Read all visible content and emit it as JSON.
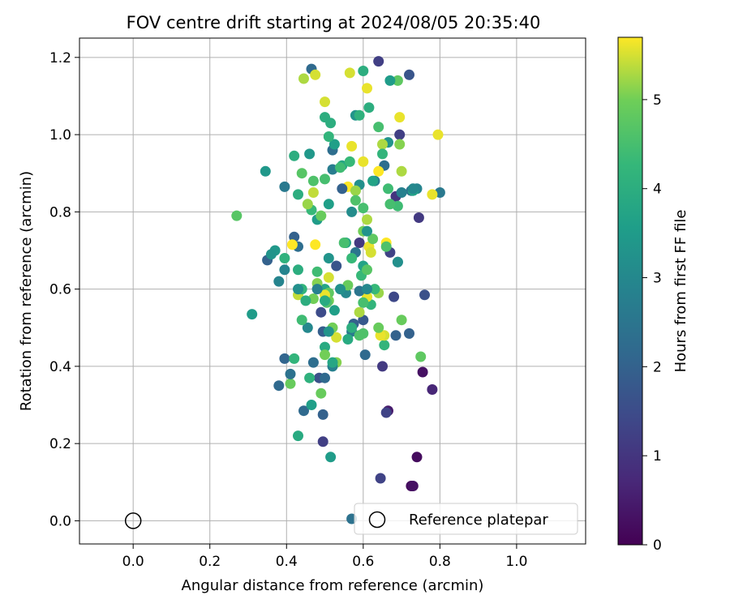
{
  "chart_data": {
    "type": "scatter",
    "title": "FOV centre drift starting at 2024/08/05 20:35:40",
    "xlabel": "Angular distance from reference (arcmin)",
    "ylabel": "Rotation from reference (arcmin)",
    "xlim": [
      -0.14,
      1.18
    ],
    "ylim": [
      -0.06,
      1.25
    ],
    "xticks": [
      0.0,
      0.2,
      0.4,
      0.6,
      0.8,
      1.0
    ],
    "yticks": [
      0.0,
      0.2,
      0.4,
      0.6,
      0.8,
      1.0,
      1.2
    ],
    "xtick_labels": [
      "0.0",
      "0.2",
      "0.4",
      "0.6",
      "0.8",
      "1.0"
    ],
    "ytick_labels": [
      "0.0",
      "0.2",
      "0.4",
      "0.6",
      "0.8",
      "1.0",
      "1.2"
    ],
    "grid": true,
    "legend": {
      "placement": "lower-right",
      "entries": [
        "Reference platepar"
      ]
    },
    "colorbar": {
      "label": "Hours from first FF file",
      "colormap": "viridis",
      "range": [
        0,
        5.7
      ],
      "ticks": [
        0,
        1,
        2,
        3,
        4,
        5
      ],
      "tick_labels": [
        "0",
        "1",
        "2",
        "3",
        "4",
        "5"
      ]
    },
    "reference_point": {
      "x": 0.0,
      "y": 0.0,
      "label": "Reference platepar"
    },
    "series": [
      {
        "points": [
          [
            0.725,
            0.09,
            0.2
          ],
          [
            0.73,
            0.09,
            0.3
          ],
          [
            0.74,
            0.165,
            0.2
          ],
          [
            0.755,
            0.385,
            0.3
          ],
          [
            0.78,
            0.34,
            0.7
          ],
          [
            0.665,
            0.285,
            0.5
          ],
          [
            0.66,
            0.28,
            1.3
          ],
          [
            0.645,
            0.11,
            1.3
          ],
          [
            0.495,
            0.205,
            1.2
          ],
          [
            0.65,
            0.4,
            1.1
          ],
          [
            0.68,
            0.58,
            1.4
          ],
          [
            0.745,
            0.785,
            1.1
          ],
          [
            0.64,
            1.19,
            1.2
          ],
          [
            0.72,
            1.155,
            1.7
          ],
          [
            0.695,
            1.0,
            1.2
          ],
          [
            0.685,
            0.84,
            1.0
          ],
          [
            0.59,
            0.72,
            1.1
          ],
          [
            0.67,
            0.695,
            1.3
          ],
          [
            0.49,
            0.54,
            1.5
          ],
          [
            0.485,
            0.37,
            1.6
          ],
          [
            0.53,
            0.66,
            1.7
          ],
          [
            0.495,
            0.49,
            1.9
          ],
          [
            0.6,
            0.52,
            1.8
          ],
          [
            0.605,
            0.43,
            2.2
          ],
          [
            0.72,
            0.485,
            2.0
          ],
          [
            0.76,
            0.585,
            1.6
          ],
          [
            0.685,
            0.48,
            2.0
          ],
          [
            0.575,
            0.51,
            2.0
          ],
          [
            0.495,
            0.275,
            2.0
          ],
          [
            0.445,
            0.285,
            2.2
          ],
          [
            0.42,
            0.735,
            2.0
          ],
          [
            0.43,
            0.71,
            2.3
          ],
          [
            0.35,
            0.675,
            2.0
          ],
          [
            0.38,
            0.35,
            2.2
          ],
          [
            0.395,
            0.42,
            2.1
          ],
          [
            0.47,
            0.41,
            2.3
          ],
          [
            0.52,
            0.96,
            2.3
          ],
          [
            0.465,
            1.17,
            2.2
          ],
          [
            0.57,
            0.005,
            2.4
          ],
          [
            0.655,
            0.92,
            2.3
          ],
          [
            0.8,
            0.85,
            2.6
          ],
          [
            0.725,
            0.855,
            2.4
          ],
          [
            0.69,
            0.67,
            2.6
          ],
          [
            0.57,
            0.49,
            2.6
          ],
          [
            0.58,
            0.695,
            2.5
          ],
          [
            0.63,
            0.88,
            2.8
          ],
          [
            0.74,
            0.86,
            2.9
          ],
          [
            0.7,
            0.85,
            2.8
          ],
          [
            0.52,
            0.91,
            2.7
          ],
          [
            0.395,
            0.865,
            2.6
          ],
          [
            0.38,
            0.62,
            2.9
          ],
          [
            0.395,
            0.65,
            2.9
          ],
          [
            0.455,
            0.5,
            3.0
          ],
          [
            0.555,
            0.59,
            3.0
          ],
          [
            0.57,
            0.8,
            3.1
          ],
          [
            0.59,
            0.87,
            3.2
          ],
          [
            0.665,
            0.98,
            3.3
          ],
          [
            0.58,
            1.05,
            3.3
          ],
          [
            0.345,
            0.905,
            3.4
          ],
          [
            0.37,
            0.7,
            3.4
          ],
          [
            0.31,
            0.535,
            3.5
          ],
          [
            0.46,
            0.95,
            3.4
          ],
          [
            0.48,
            0.78,
            3.5
          ],
          [
            0.51,
            0.82,
            3.6
          ],
          [
            0.465,
            0.3,
            3.6
          ],
          [
            0.515,
            0.165,
            3.5
          ],
          [
            0.525,
            0.975,
            3.6
          ],
          [
            0.73,
            0.855,
            3.7
          ],
          [
            0.625,
            0.88,
            3.7
          ],
          [
            0.6,
            0.66,
            3.7
          ],
          [
            0.555,
            0.72,
            3.8
          ],
          [
            0.5,
            0.6,
            3.8
          ],
          [
            0.545,
            0.92,
            3.8
          ],
          [
            0.5,
            0.45,
            3.9
          ],
          [
            0.56,
            0.47,
            3.9
          ],
          [
            0.6,
            1.165,
            4.0
          ],
          [
            0.5,
            1.045,
            4.0
          ],
          [
            0.515,
            1.03,
            4.0
          ],
          [
            0.59,
            1.05,
            4.1
          ],
          [
            0.615,
            1.07,
            4.0
          ],
          [
            0.42,
            0.945,
            4.0
          ],
          [
            0.43,
            0.845,
            4.0
          ],
          [
            0.395,
            0.68,
            4.1
          ],
          [
            0.43,
            0.22,
            3.9
          ],
          [
            0.46,
            0.37,
            4.1
          ],
          [
            0.655,
            0.455,
            4.2
          ],
          [
            0.62,
            0.56,
            4.2
          ],
          [
            0.595,
            0.635,
            4.3
          ],
          [
            0.565,
            0.93,
            4.3
          ],
          [
            0.465,
            0.805,
            4.3
          ],
          [
            0.42,
            0.42,
            4.2
          ],
          [
            0.69,
            0.815,
            4.4
          ],
          [
            0.665,
            0.86,
            4.4
          ],
          [
            0.44,
            0.52,
            4.4
          ],
          [
            0.64,
            1.02,
            4.5
          ],
          [
            0.6,
            0.81,
            4.5
          ],
          [
            0.5,
            0.885,
            4.5
          ],
          [
            0.27,
            0.79,
            4.7
          ],
          [
            0.44,
            0.9,
            4.7
          ],
          [
            0.75,
            0.425,
            4.8
          ],
          [
            0.69,
            1.14,
            4.8
          ],
          [
            0.49,
            0.33,
            4.9
          ],
          [
            0.41,
            0.355,
            4.9
          ],
          [
            0.51,
            0.59,
            4.8
          ],
          [
            0.5,
            0.43,
            5.0
          ],
          [
            0.53,
            0.41,
            5.1
          ],
          [
            0.65,
            0.975,
            5.3
          ],
          [
            0.7,
            0.905,
            5.3
          ],
          [
            0.64,
            0.59,
            5.2
          ],
          [
            0.51,
            0.57,
            5.0
          ],
          [
            0.59,
            0.54,
            5.3
          ],
          [
            0.655,
            0.48,
            5.5
          ],
          [
            0.61,
            0.78,
            5.3
          ],
          [
            0.475,
            1.155,
            5.5
          ],
          [
            0.565,
            1.16,
            5.5
          ],
          [
            0.61,
            1.12,
            5.6
          ],
          [
            0.5,
            1.085,
            5.5
          ],
          [
            0.695,
            1.045,
            5.6
          ],
          [
            0.57,
            0.97,
            5.6
          ],
          [
            0.6,
            0.93,
            5.6
          ],
          [
            0.795,
            1.0,
            5.6
          ],
          [
            0.78,
            0.845,
            5.6
          ],
          [
            0.64,
            0.905,
            5.7
          ],
          [
            0.56,
            0.865,
            5.7
          ],
          [
            0.415,
            0.715,
            5.7
          ],
          [
            0.475,
            0.715,
            5.7
          ],
          [
            0.615,
            0.71,
            5.6
          ],
          [
            0.66,
            0.72,
            5.7
          ],
          [
            0.62,
            0.695,
            5.5
          ],
          [
            0.51,
            0.63,
            5.5
          ],
          [
            0.43,
            0.585,
            5.4
          ],
          [
            0.5,
            0.585,
            5.6
          ],
          [
            0.53,
            0.475,
            5.5
          ],
          [
            0.61,
            0.58,
            5.6
          ],
          [
            0.645,
            0.48,
            5.6
          ],
          [
            0.445,
            1.145,
            5.3
          ],
          [
            0.47,
            0.85,
            5.4
          ],
          [
            0.58,
            0.855,
            5.2
          ],
          [
            0.6,
            0.75,
            5.0
          ],
          [
            0.455,
            0.82,
            5.2
          ],
          [
            0.48,
            0.615,
            5.1
          ],
          [
            0.47,
            0.575,
            5.0
          ],
          [
            0.52,
            0.5,
            5.0
          ],
          [
            0.695,
            0.975,
            5.1
          ],
          [
            0.64,
            0.5,
            4.9
          ],
          [
            0.7,
            0.52,
            4.9
          ],
          [
            0.47,
            0.88,
            4.6
          ],
          [
            0.49,
            0.79,
            4.9
          ],
          [
            0.56,
            0.61,
            4.9
          ],
          [
            0.625,
            0.73,
            4.8
          ],
          [
            0.6,
            0.485,
            4.6
          ],
          [
            0.505,
            0.565,
            4.6
          ],
          [
            0.61,
            0.65,
            4.7
          ],
          [
            0.48,
            0.645,
            4.4
          ],
          [
            0.67,
            0.82,
            4.5
          ],
          [
            0.43,
            0.65,
            4.0
          ],
          [
            0.65,
            0.95,
            4.2
          ],
          [
            0.44,
            0.6,
            4.2
          ],
          [
            0.51,
            0.995,
            4.2
          ],
          [
            0.54,
            0.915,
            4.4
          ],
          [
            0.55,
            0.72,
            4.5
          ],
          [
            0.6,
            0.565,
            4.5
          ],
          [
            0.59,
            0.48,
            4.6
          ],
          [
            0.63,
            0.6,
            4.3
          ],
          [
            0.58,
            0.83,
            4.6
          ],
          [
            0.66,
            0.71,
            4.6
          ],
          [
            0.57,
            0.68,
            4.3
          ],
          [
            0.41,
            0.38,
            2.4
          ],
          [
            0.52,
            0.4,
            2.8
          ],
          [
            0.5,
            0.37,
            2.2
          ],
          [
            0.59,
            0.595,
            2.5
          ],
          [
            0.545,
            0.86,
            2.0
          ],
          [
            0.48,
            0.6,
            2.8
          ],
          [
            0.43,
            0.6,
            3.2
          ],
          [
            0.51,
            0.49,
            3.3
          ],
          [
            0.51,
            0.68,
            3.3
          ],
          [
            0.69,
            0.67,
            3.2
          ],
          [
            0.73,
            0.86,
            3.0
          ],
          [
            0.54,
            0.6,
            3.2
          ],
          [
            0.36,
            0.69,
            3.3
          ],
          [
            0.61,
            0.75,
            3.3
          ],
          [
            0.52,
            0.41,
            3.8
          ],
          [
            0.57,
            0.5,
            4.0
          ],
          [
            0.45,
            0.57,
            4.0
          ],
          [
            0.5,
            0.57,
            3.9
          ],
          [
            0.525,
            0.545,
            3.6
          ],
          [
            0.61,
            0.6,
            3.0
          ],
          [
            0.67,
            1.14,
            3.5
          ]
        ]
      }
    ]
  }
}
